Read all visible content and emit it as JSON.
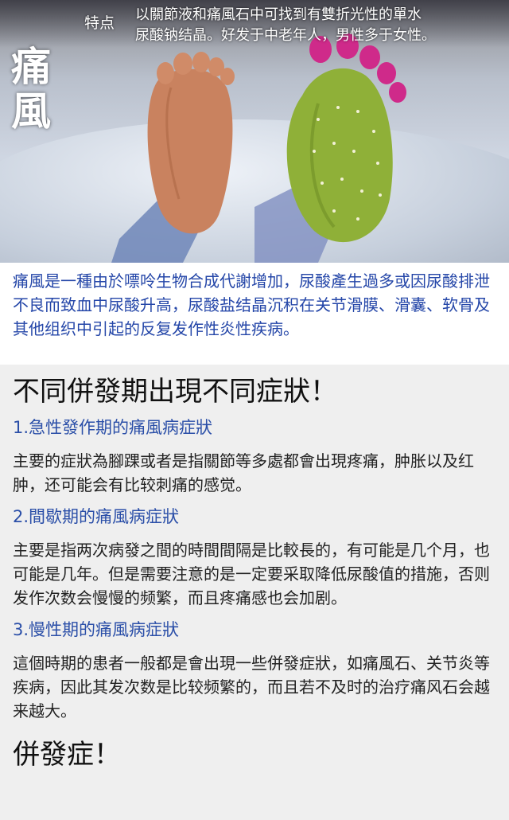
{
  "hero": {
    "title_char_1": "痛",
    "title_char_2": "風",
    "feature_label": "特点",
    "feature_line_1": "以關節液和痛風石中可找到有雙折光性的單水",
    "feature_line_2": "尿酸钠结晶。好发于中老年人，男性多于女性。",
    "image_subject": "bare-foot-and-cactus-foot-under-blanket"
  },
  "intro": {
    "text": "痛風是一種由於嘌呤生物合成代謝增加，尿酸產生過多或因尿酸排泄不良而致血中尿酸升高，尿酸盐结晶沉积在关节滑膜、滑囊、软骨及其他组织中引起的反复发作性炎性疾病。"
  },
  "stages": {
    "heading": "不同併發期出現不同症狀！",
    "items": [
      {
        "title": "1.急性發作期的痛風病症狀",
        "body": "主要的症狀為腳踝或者是指關節等多處都會出現疼痛，肿胀以及红肿，还可能会有比较刺痛的感觉。"
      },
      {
        "title": "2.間歇期的痛風病症狀",
        "body": "主要是指两次病發之間的時間間隔是比較長的，有可能是几个月，也可能是几年。但是需要注意的是一定要采取降低尿酸值的措施，否则发作次数会慢慢的频繁，而且疼痛感也会加剧。"
      },
      {
        "title": "3.慢性期的痛風病症狀",
        "body": "這個時期的患者一般都是會出現一些併發症狀，如痛風石、关节炎等疾病，因此其发次数是比较频繁的，而且若不及时的治疗痛风石会越来越大。"
      }
    ]
  },
  "complications": {
    "heading": "併發症！"
  },
  "colors": {
    "intro_text": "#2446a8",
    "section_title": "#2b4fa8",
    "content_bg": "#efefef"
  }
}
